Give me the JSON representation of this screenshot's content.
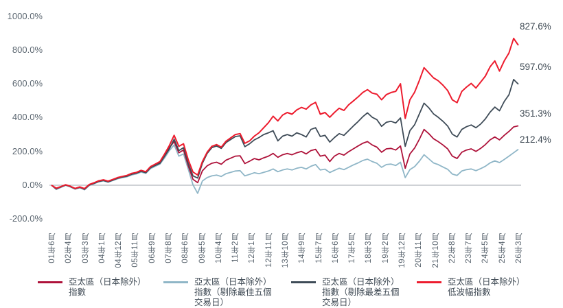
{
  "chart_data": {
    "type": "line",
    "grid": "zero-line-only",
    "legend_position": "bottom",
    "y_ticks": [
      1000,
      800,
      600,
      400,
      200,
      0,
      -200
    ],
    "y_tick_labels": [
      "1000.0%",
      "800.0%",
      "600.0%",
      "400.0%",
      "200.0%",
      "0.0%",
      "-200.0%"
    ],
    "x_tick_labels": [
      "01年6月",
      "02年4月",
      "03年3月",
      "04年1月",
      "04年12月",
      "05年11月",
      "06年9月",
      "07年8月",
      "08年6月",
      "09年5月",
      "10年4月",
      "11年2月",
      "12年1月",
      "12年11月",
      "13年10月",
      "14年9月",
      "15年7月",
      "16年6月",
      "17年5月",
      "18年3月",
      "19年2月",
      "19年12月",
      "20年11月",
      "21年10月",
      "22年8月",
      "23年7月",
      "24年5月",
      "25年4月",
      "26年3月"
    ],
    "series": [
      {
        "name": "亞太區（日本除外）指數",
        "color": "#AE123A",
        "end_label": "351.3%",
        "final_value": 351.3,
        "values": [
          0,
          -20,
          -9,
          2,
          -7,
          -20,
          -11,
          -22,
          2,
          12,
          24,
          30,
          22,
          32,
          43,
          50,
          55,
          67,
          73,
          85,
          77,
          106,
          121,
          135,
          178,
          222,
          258,
          192,
          208,
          115,
          35,
          15,
          85,
          115,
          130,
          136,
          124,
          148,
          160,
          172,
          174,
          128,
          142,
          158,
          150,
          162,
          172,
          188,
          165,
          180,
          188,
          180,
          192,
          200,
          185,
          205,
          212,
          172,
          178,
          140,
          172,
          188,
          178,
          198,
          215,
          232,
          248,
          258,
          238,
          225,
          195,
          215,
          218,
          208,
          232,
          100,
          185,
          220,
          272,
          330,
          305,
          275,
          258,
          238,
          215,
          172,
          158,
          195,
          208,
          215,
          200,
          218,
          240,
          268,
          285,
          268,
          295,
          318,
          345,
          351.3
        ]
      },
      {
        "name": "亞太區（日本除外）指數（剔除最佳五個交易日）",
        "color": "#8FB6C7",
        "end_label": "212.4%",
        "final_value": 212.4,
        "values": [
          0,
          -25,
          -13,
          -1,
          -10,
          -23,
          -15,
          -27,
          -2,
          8,
          20,
          26,
          18,
          28,
          38,
          45,
          50,
          61,
          67,
          78,
          70,
          98,
          112,
          125,
          162,
          205,
          238,
          172,
          185,
          95,
          2,
          -48,
          25,
          45,
          55,
          60,
          52,
          68,
          76,
          84,
          86,
          55,
          64,
          74,
          68,
          76,
          84,
          96,
          80,
          90,
          96,
          90,
          100,
          106,
          96,
          112,
          122,
          90,
          95,
          75,
          88,
          100,
          92,
          106,
          120,
          132,
          146,
          154,
          140,
          130,
          106,
          122,
          125,
          117,
          136,
          45,
          92,
          110,
          142,
          180,
          156,
          132,
          122,
          108,
          94,
          66,
          58,
          84,
          92,
          96,
          86,
          98,
          112,
          132,
          144,
          134,
          152,
          172,
          192,
          212.4
        ]
      },
      {
        "name": "亞太區（日本除外）指數（剔除最差五個交易日）",
        "color": "#3E4B57",
        "end_label": "597.0%",
        "final_value": 597.0,
        "values": [
          0,
          -22,
          -10,
          1,
          -8,
          -21,
          -13,
          -24,
          1,
          11,
          22,
          28,
          20,
          30,
          41,
          48,
          53,
          65,
          71,
          82,
          74,
          103,
          117,
          130,
          172,
          215,
          272,
          205,
          222,
          128,
          55,
          42,
          130,
          188,
          222,
          232,
          218,
          252,
          270,
          288,
          292,
          228,
          245,
          268,
          282,
          300,
          310,
          322,
          262,
          290,
          300,
          290,
          310,
          300,
          285,
          330,
          340,
          288,
          295,
          255,
          282,
          305,
          295,
          322,
          350,
          376,
          405,
          428,
          402,
          388,
          348,
          372,
          378,
          368,
          398,
          230,
          322,
          358,
          422,
          485,
          458,
          422,
          402,
          378,
          350,
          302,
          285,
          330,
          346,
          356,
          340,
          362,
          392,
          432,
          462,
          440,
          495,
          535,
          625,
          597.0
        ]
      },
      {
        "name": "亞太區（日本除外）低波幅指數",
        "color": "#ED1C2E",
        "end_label": "827.6%",
        "final_value": 827.6,
        "values": [
          0,
          -18,
          -8,
          3,
          -6,
          -19,
          -10,
          -20,
          4,
          14,
          26,
          32,
          24,
          34,
          45,
          52,
          58,
          70,
          76,
          88,
          80,
          110,
          125,
          140,
          185,
          235,
          295,
          230,
          245,
          150,
          78,
          60,
          140,
          195,
          230,
          240,
          225,
          260,
          280,
          300,
          305,
          248,
          262,
          290,
          310,
          340,
          370,
          408,
          380,
          415,
          430,
          420,
          445,
          460,
          450,
          475,
          490,
          420,
          430,
          402,
          430,
          455,
          442,
          475,
          498,
          522,
          548,
          565,
          545,
          538,
          505,
          536,
          548,
          555,
          600,
          395,
          505,
          550,
          620,
          695,
          665,
          635,
          618,
          592,
          560,
          505,
          488,
          555,
          580,
          602,
          575,
          610,
          645,
          700,
          735,
          675,
          735,
          782,
          868,
          827.6
        ]
      }
    ],
    "legend": [
      {
        "series": 0,
        "label_lines": [
          "亞太區（日本除外）",
          "指數"
        ]
      },
      {
        "series": 1,
        "label_lines": [
          "亞太區（日本除外）",
          "指數（剔除最佳五個",
          "交易日）"
        ]
      },
      {
        "series": 2,
        "label_lines": [
          "亞太區（日本除外）",
          "指數（剔除最差五個",
          "交易日）"
        ]
      },
      {
        "series": 3,
        "label_lines": [
          "亞太區（日本除外）",
          "低波幅指數"
        ]
      }
    ]
  },
  "colors": {
    "background": "#FFFFFF",
    "axis_text": "#5B6670",
    "end_label_text": "#404B55",
    "zero_line": "#9FA6AC"
  }
}
